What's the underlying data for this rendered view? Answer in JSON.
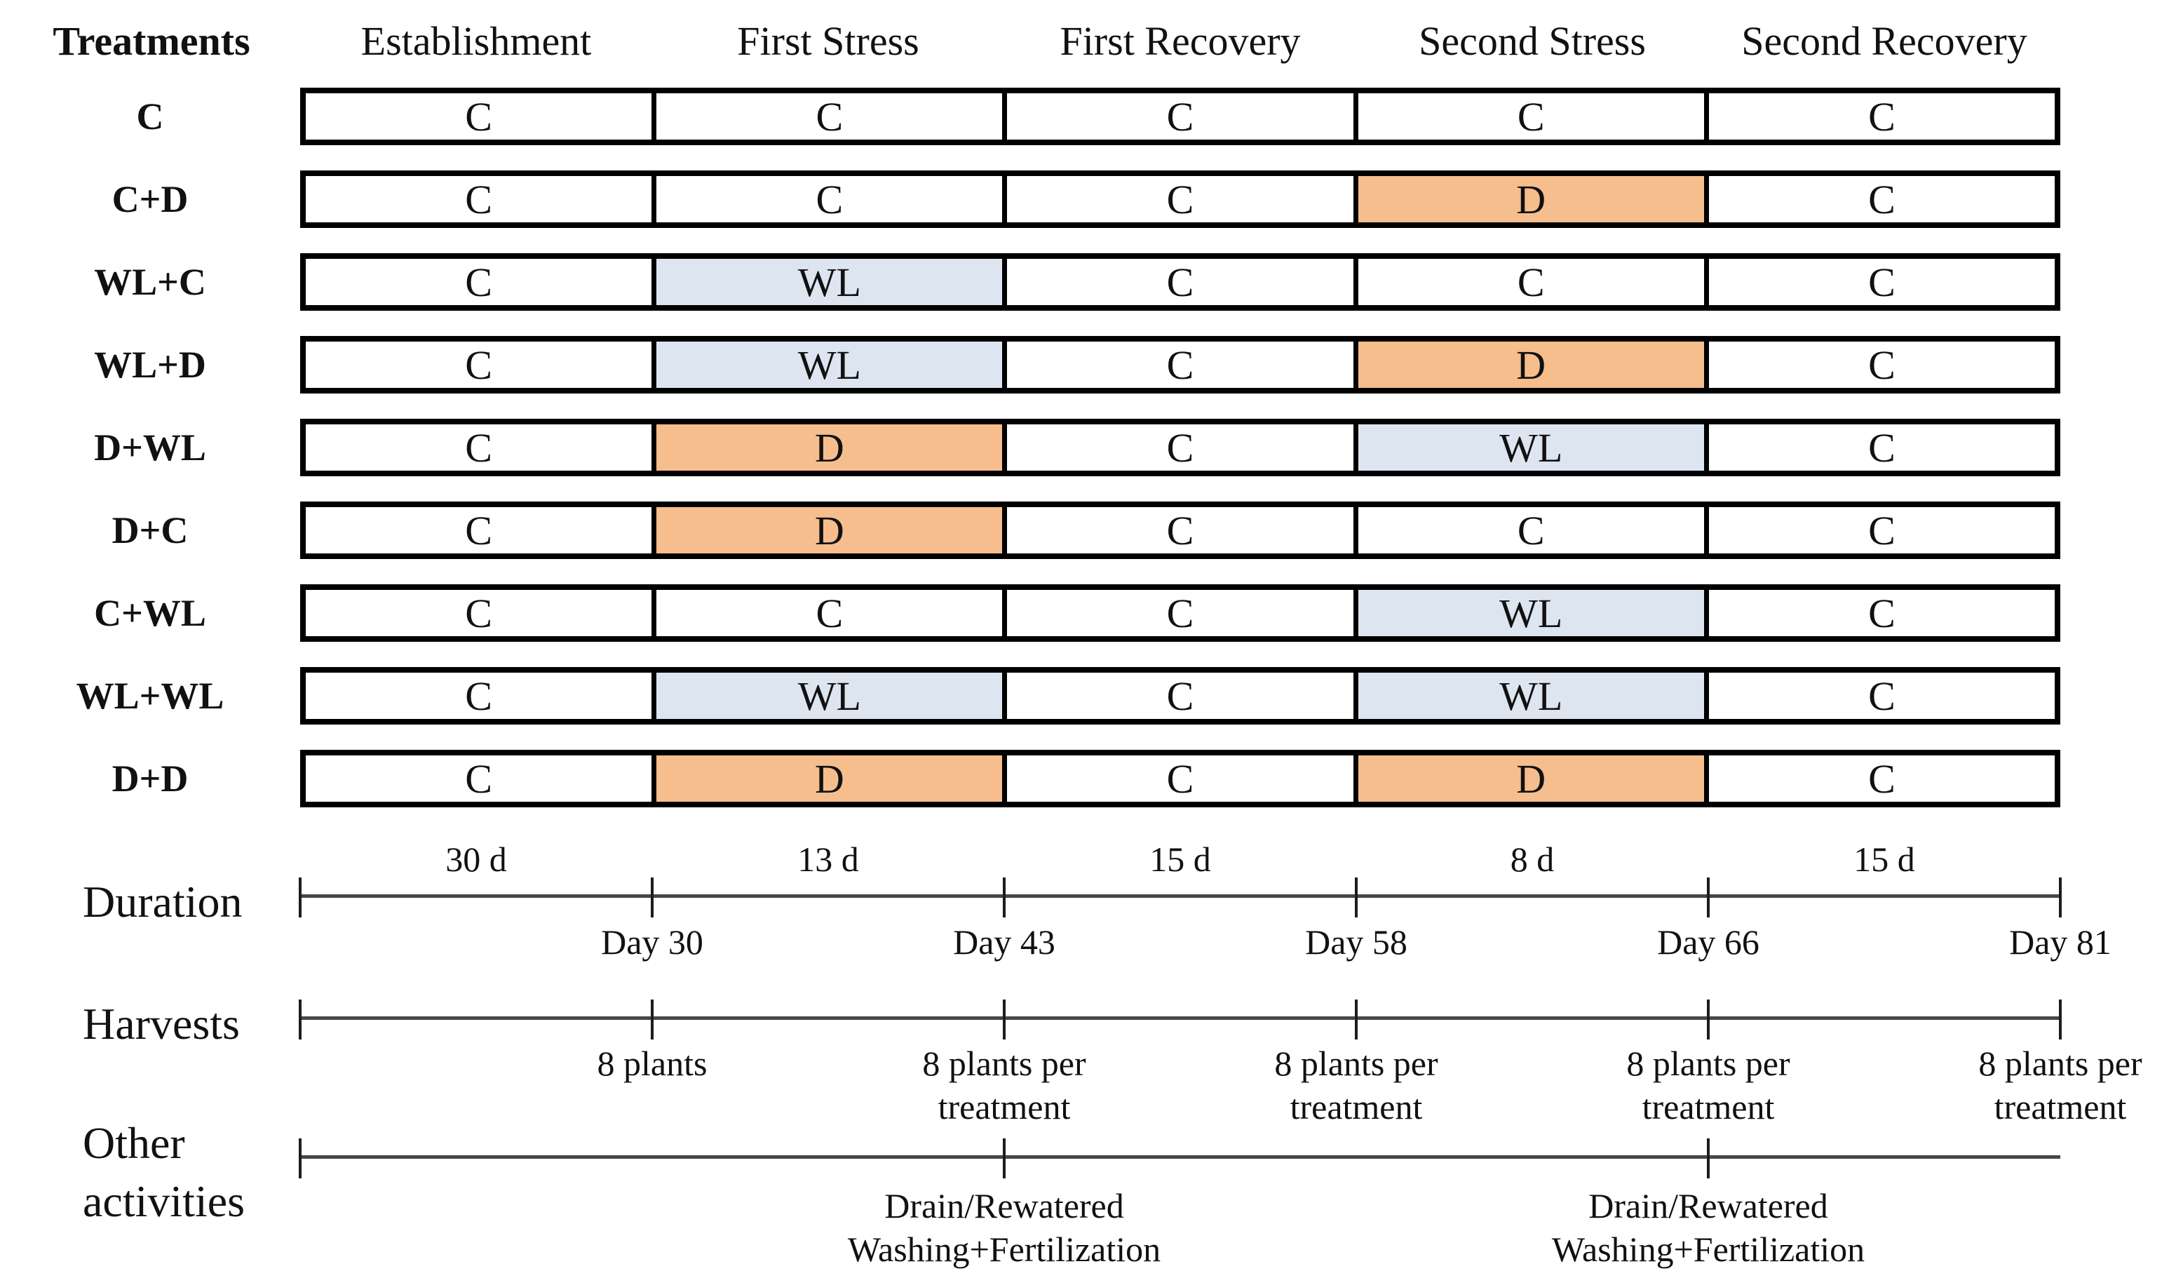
{
  "figure": {
    "header": {
      "treatments_label": "Treatments",
      "phases": [
        "Establishment",
        "First Stress",
        "First Recovery",
        "Second Stress",
        "Second Recovery"
      ]
    },
    "colors": {
      "control_fill": "#FFFFFF",
      "drought_fill": "#F6BE8D",
      "waterlogging_fill": "#DCE5F0",
      "axis_line": "#474747",
      "tick": "#1C1C1C",
      "cell_border": "#000000"
    },
    "rows": [
      {
        "label": "C",
        "cells": [
          "C",
          "C",
          "C",
          "C",
          "C"
        ]
      },
      {
        "label": "C+D",
        "cells": [
          "C",
          "C",
          "C",
          "D",
          "C"
        ]
      },
      {
        "label": "WL+C",
        "cells": [
          "C",
          "WL",
          "C",
          "C",
          "C"
        ]
      },
      {
        "label": "WL+D",
        "cells": [
          "C",
          "WL",
          "C",
          "D",
          "C"
        ]
      },
      {
        "label": "D+WL",
        "cells": [
          "C",
          "D",
          "C",
          "WL",
          "C"
        ]
      },
      {
        "label": "D+C",
        "cells": [
          "C",
          "D",
          "C",
          "C",
          "C"
        ]
      },
      {
        "label": "C+WL",
        "cells": [
          "C",
          "C",
          "C",
          "WL",
          "C"
        ]
      },
      {
        "label": "WL+WL",
        "cells": [
          "C",
          "WL",
          "C",
          "WL",
          "C"
        ]
      },
      {
        "label": "D+D",
        "cells": [
          "C",
          "D",
          "C",
          "D",
          "C"
        ]
      }
    ],
    "duration": {
      "label": "Duration",
      "segments": [
        "30 d",
        "13 d",
        "15 d",
        "8 d",
        "15 d"
      ],
      "day_marks": [
        "Day 30",
        "Day 43",
        "Day 58",
        "Day 66",
        "Day 81"
      ]
    },
    "harvests": {
      "label": "Harvests",
      "marks": [
        [
          "8 plants"
        ],
        [
          "8 plants per",
          "treatment"
        ],
        [
          "8 plants per",
          "treatment"
        ],
        [
          "8 plants per",
          "treatment"
        ],
        [
          "8 plants per",
          "treatment"
        ]
      ]
    },
    "other_activities": {
      "label_lines": [
        "Other",
        "activities"
      ],
      "events": [
        [
          "Drain/Rewatered",
          "Washing+Fertilization"
        ],
        [
          "Drain/Rewatered",
          "Washing+Fertilization"
        ]
      ]
    }
  }
}
